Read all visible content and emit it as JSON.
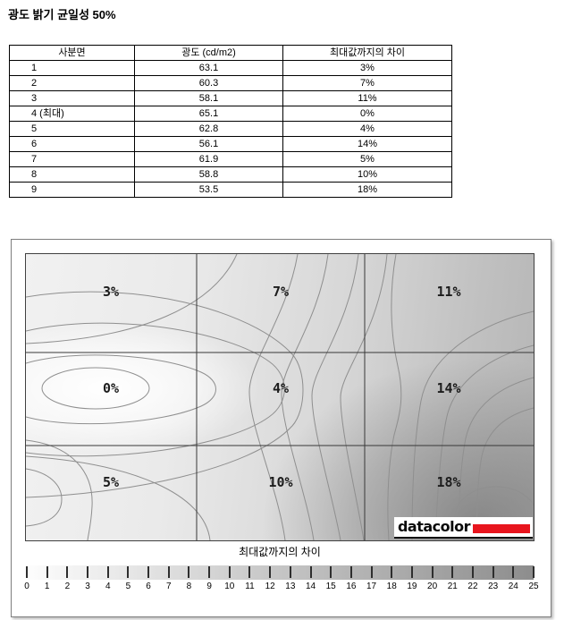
{
  "page": {
    "title": "광도 밝기 균일성 50%"
  },
  "table": {
    "headers": [
      "사분면",
      "광도 (cd/m2)",
      "최대값까지의 차이"
    ],
    "rows": [
      [
        "1",
        "63.1",
        "3%"
      ],
      [
        "2",
        "60.3",
        "7%"
      ],
      [
        "3",
        "58.1",
        "11%"
      ],
      [
        "4 (최대)",
        "65.1",
        "0%"
      ],
      [
        "5",
        "62.8",
        "4%"
      ],
      [
        "6",
        "56.1",
        "14%"
      ],
      [
        "7",
        "61.9",
        "5%"
      ],
      [
        "8",
        "58.8",
        "10%"
      ],
      [
        "9",
        "53.5",
        "18%"
      ]
    ]
  },
  "chart_data": {
    "type": "heatmap",
    "title": "광도 밝기 균일성 50%",
    "caption": "최대값까지의 차이",
    "grid_rows": 3,
    "grid_cols": 3,
    "cell_labels": [
      [
        "3%",
        "7%",
        "11%"
      ],
      [
        "0%",
        "4%",
        "14%"
      ],
      [
        "5%",
        "10%",
        "18%"
      ]
    ],
    "cell_values_percent": [
      [
        3,
        7,
        11
      ],
      [
        0,
        4,
        14
      ],
      [
        5,
        10,
        18
      ]
    ],
    "value_meaning": "difference to maximum luminance per screen ninth",
    "colorbar": {
      "label": "최대값까지의 차이",
      "min": 0,
      "max": 25,
      "tick_labels": [
        "0",
        "1",
        "2",
        "3",
        "4",
        "5",
        "6",
        "7",
        "8",
        "9",
        "10",
        "11",
        "12",
        "13",
        "14",
        "15",
        "16",
        "17",
        "18",
        "19",
        "20",
        "21",
        "22",
        "23",
        "24",
        "25"
      ]
    },
    "legend_position": "bottom",
    "grid_lines": "on"
  },
  "logo": {
    "text": "datacolor"
  },
  "colors": {
    "logo_red": "#e8151e",
    "contour_line": "#8f8f8f",
    "grid_line": "#383838",
    "plot_light": "#fdfdfd",
    "plot_dark_corner": "#a6a6a6",
    "table_border": "#000000"
  }
}
